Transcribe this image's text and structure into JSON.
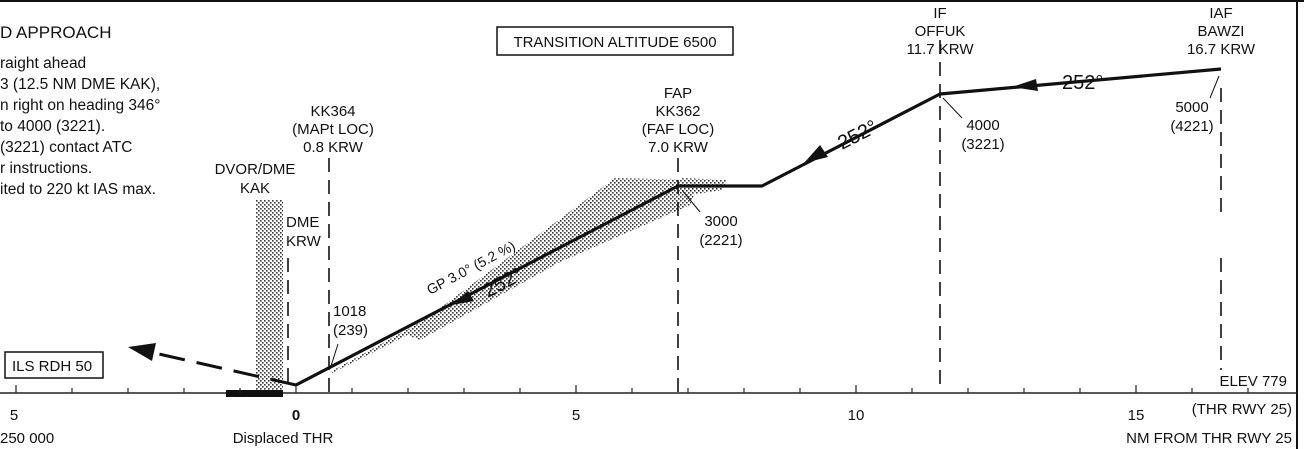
{
  "title": "D APPROACH",
  "missed_approach_text": [
    "raight ahead",
    "3 (12.5 NM DME KAK),",
    "n right on heading 346°",
    " to 4000 (3221).",
    "(3221) contact ATC",
    "r instructions.",
    "ited to 220 kt IAS max."
  ],
  "transition_altitude": "TRANSITION ALTITUDE 6500",
  "rdh_box": "ILS RDH 50",
  "elevation": "ELEV 779",
  "elevation_ref": "(THR RWY 25)",
  "x_axis_label": "NM FROM THR RWY 25",
  "scale": "250 000",
  "threshold_label": "Displaced THR",
  "gp_label": "GP 3.0° (5.2 %)",
  "course": "252°",
  "fixes": {
    "iaf": {
      "lines": [
        "IAF",
        "BAWZI",
        "16.7 KRW"
      ],
      "alt": "5000",
      "hat": "(4221)"
    },
    "if": {
      "lines": [
        "IF",
        "OFFUK",
        "11.7 KRW"
      ],
      "alt": "4000",
      "hat": "(3221)"
    },
    "fap": {
      "lines": [
        "FAP",
        "KK362",
        "(FAF LOC)",
        "7.0 KRW"
      ],
      "alt": "3000",
      "hat": "(2221)"
    },
    "mapt": {
      "lines": [
        "KK364",
        "(MAPt LOC)",
        "0.8 KRW"
      ],
      "alt": "1018",
      "hat": "(239)"
    }
  },
  "navaids": {
    "dvor": [
      "DVOR/DME",
      "KAK"
    ],
    "dme": [
      "DME",
      "KRW"
    ]
  },
  "axis_ticks": [
    {
      "nm": -5,
      "label": "5"
    },
    {
      "nm": 0,
      "label": "0"
    },
    {
      "nm": 5,
      "label": "5"
    },
    {
      "nm": 10,
      "label": "10"
    },
    {
      "nm": 15,
      "label": "15"
    }
  ]
}
